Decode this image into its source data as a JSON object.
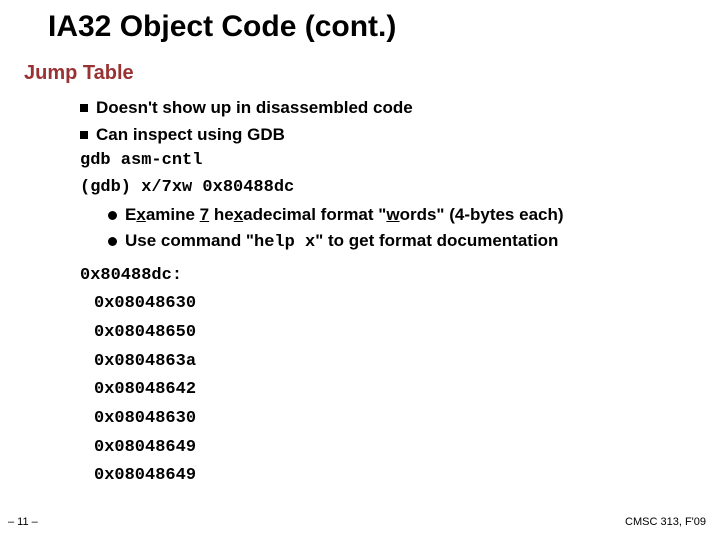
{
  "title": "IA32 Object Code (cont.)",
  "subtitle": "Jump Table",
  "bullets": {
    "b1": "Doesn't show up in disassembled code",
    "b2": "Can inspect using GDB"
  },
  "gdb": {
    "cmd1": "gdb asm-cntl",
    "cmd2": "(gdb) x/7xw 0x80488dc"
  },
  "sub": {
    "s1a": "E",
    "s1b": "x",
    "s1c": "amine ",
    "s1d": "7",
    "s1e": " he",
    "s1f": "x",
    "s1g": "adecimal format \"",
    "s1h": "w",
    "s1i": "ords\" (4-bytes each)",
    "s2a": "Use command \"",
    "s2b": "help x",
    "s2c": "\" to get format documentation"
  },
  "dump": {
    "header": "0x80488dc:",
    "lines": [
      "0x08048630",
      "0x08048650",
      "0x0804863a",
      "0x08048642",
      "0x08048630",
      "0x08048649",
      "0x08048649"
    ]
  },
  "footer": {
    "left": "– 11 –",
    "right": "CMSC 313, F'09"
  }
}
